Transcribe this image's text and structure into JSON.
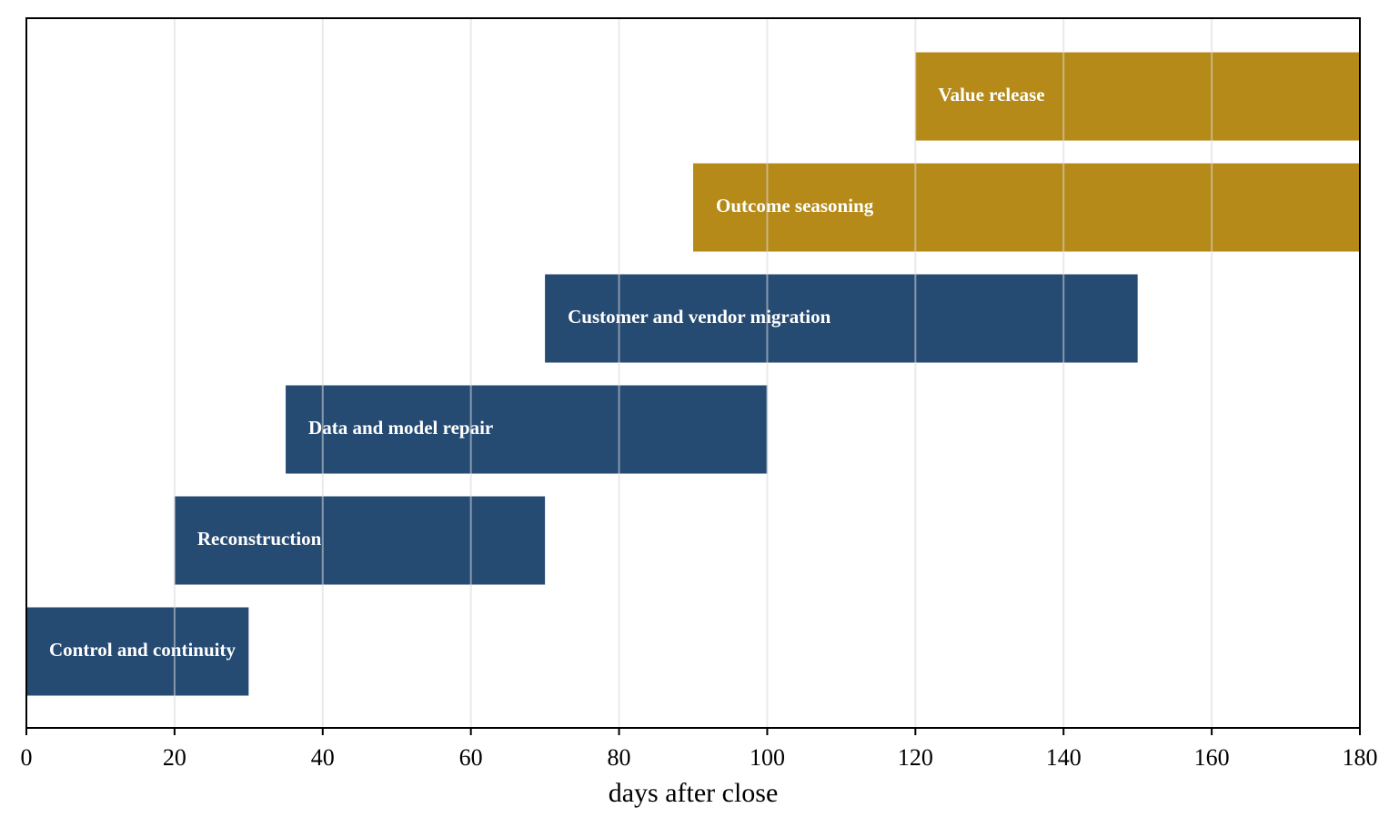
{
  "chart_data": {
    "type": "bar",
    "orientation": "horizontal",
    "xlabel": "days after close",
    "ylabel": "",
    "xlim": [
      0,
      180
    ],
    "xticks": [
      0,
      20,
      40,
      60,
      80,
      100,
      120,
      140,
      160,
      180
    ],
    "grid": "vertical",
    "legend": "none",
    "colors": {
      "blue": "#264b73",
      "gold": "#b58a18"
    },
    "phases": [
      {
        "label": "Control and continuity",
        "start": 0,
        "end": 30,
        "color": "blue"
      },
      {
        "label": "Reconstruction",
        "start": 20,
        "end": 70,
        "color": "blue"
      },
      {
        "label": "Data and model repair",
        "start": 35,
        "end": 100,
        "color": "blue"
      },
      {
        "label": "Customer and vendor migration",
        "start": 70,
        "end": 150,
        "color": "blue"
      },
      {
        "label": "Outcome seasoning",
        "start": 90,
        "end": 180,
        "color": "gold"
      },
      {
        "label": "Value release",
        "start": 120,
        "end": 180,
        "color": "gold"
      }
    ]
  }
}
